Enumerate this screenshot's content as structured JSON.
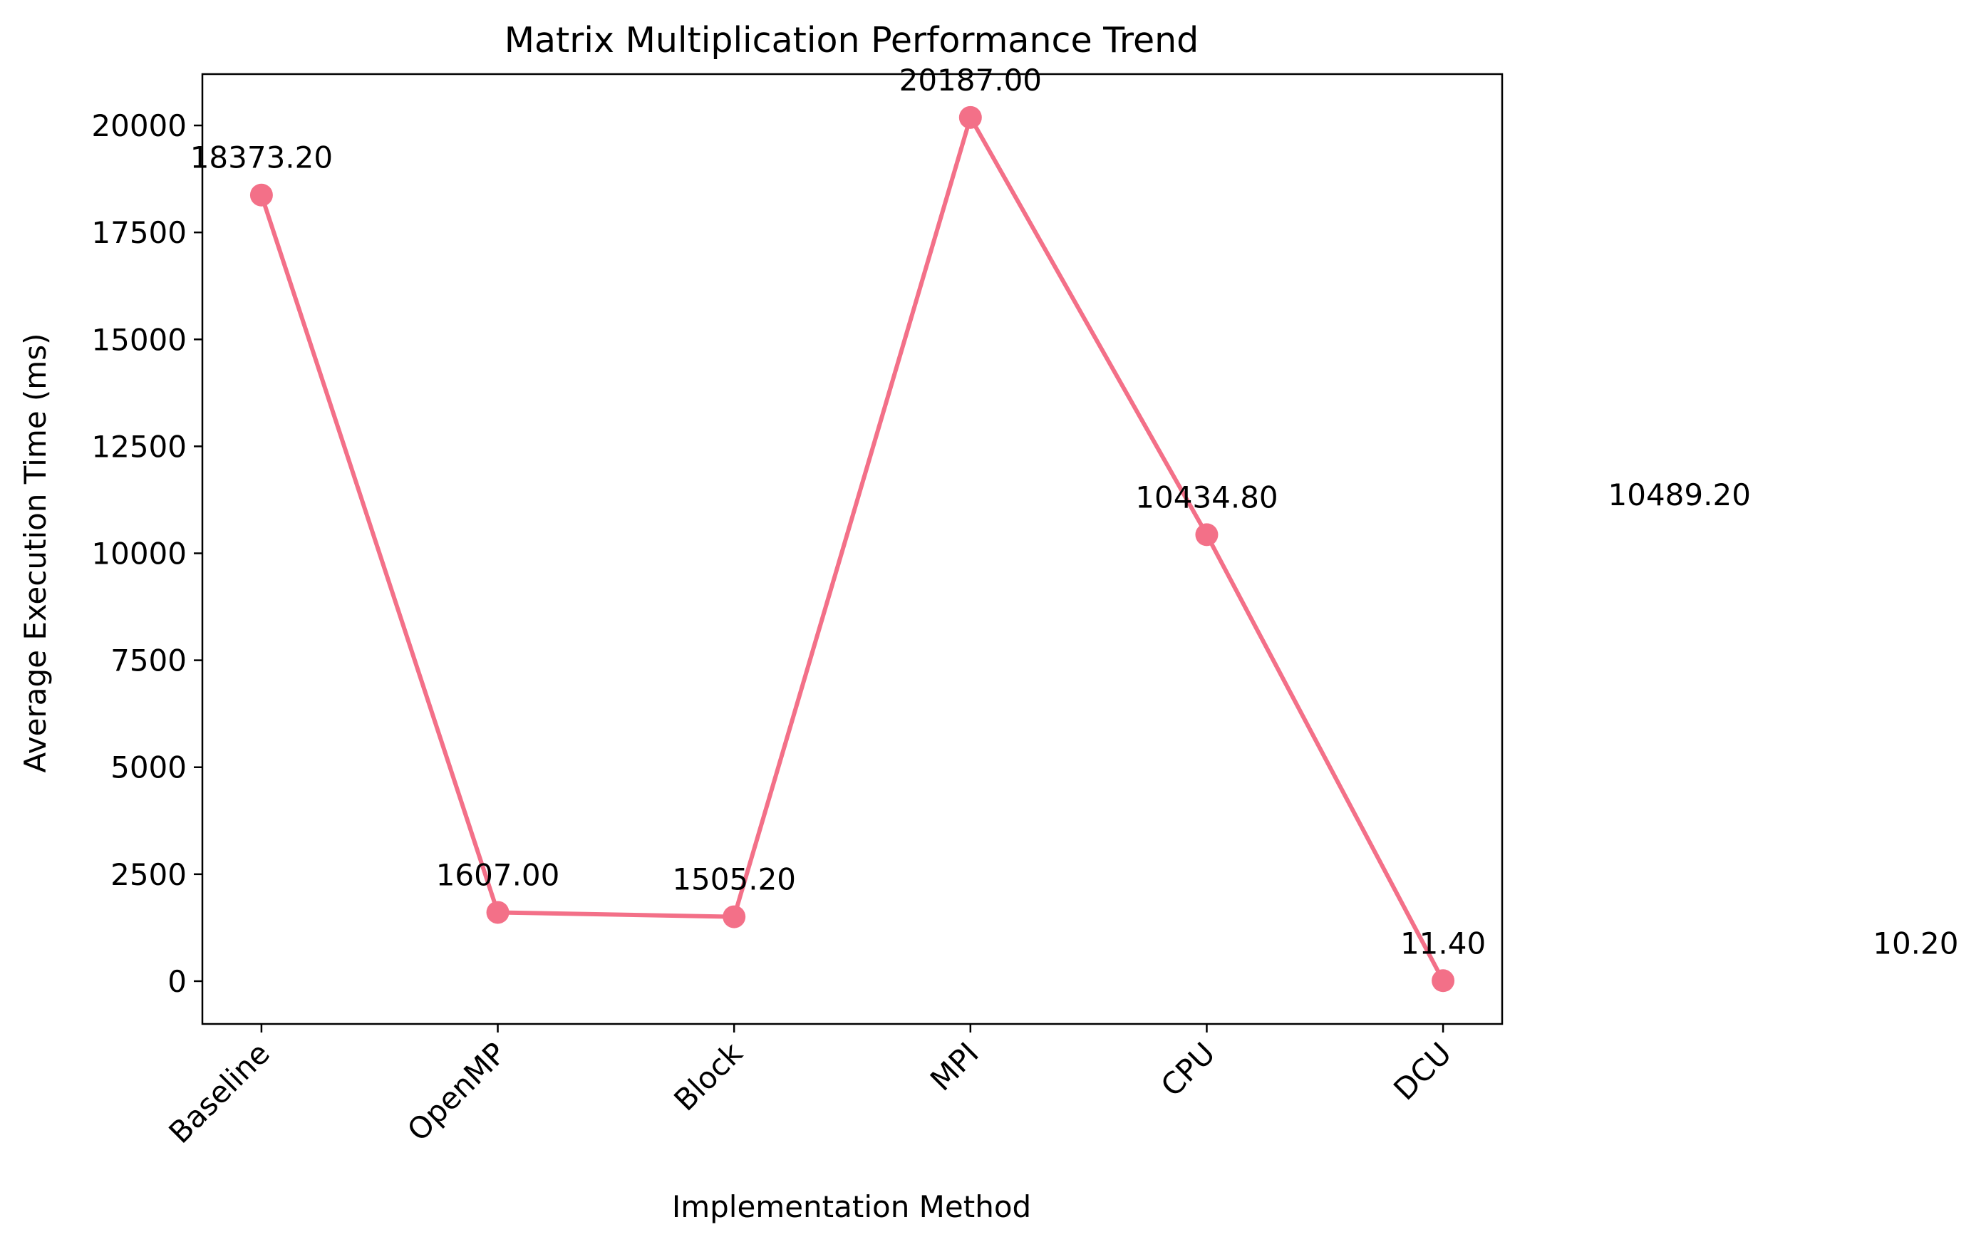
{
  "chart_data": {
    "type": "line",
    "title": "Matrix Multiplication Performance Trend",
    "xlabel": "Implementation Method",
    "ylabel": "Average Execution Time (ms)",
    "categories": [
      "Baseline",
      "OpenMP",
      "Block",
      "MPI",
      "CPU",
      "DCU"
    ],
    "series": [
      {
        "values": [
          18373.2,
          1607.0,
          1505.2,
          20187.0,
          10434.8,
          11.4
        ],
        "color": "#f37088",
        "marker": "circle"
      }
    ],
    "data_labels": [
      "18373.20",
      "1607.00",
      "1505.20",
      "20187.00",
      "10434.80",
      "11.40"
    ],
    "extra_annotations": [
      {
        "text": "10489.20",
        "x_index": 6.0,
        "y": 10489.2
      },
      {
        "text": "10.20",
        "x_index": 7.0,
        "y": 10.2
      }
    ],
    "ylim": [
      -1000,
      21200
    ],
    "yticks": [
      0,
      2500,
      5000,
      7500,
      10000,
      12500,
      15000,
      17500,
      20000
    ],
    "ytick_labels": [
      "0",
      "2500",
      "5000",
      "7500",
      "10000",
      "12500",
      "15000",
      "17500",
      "20000"
    ],
    "xlim": [
      -0.25,
      5.25
    ],
    "grid": false,
    "legend": "none"
  }
}
